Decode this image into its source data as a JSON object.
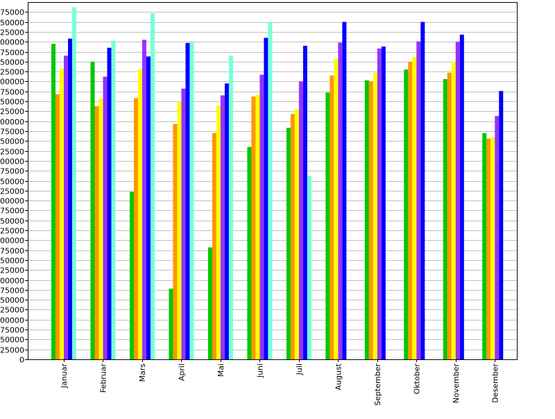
{
  "chart_data": {
    "type": "bar",
    "title": "",
    "xlabel": "",
    "ylabel": "",
    "ylim": [
      0,
      900000
    ],
    "ytick_step": 25000,
    "grid": true,
    "legend": "none",
    "categories": [
      "Januar",
      "Februar",
      "Mars",
      "April",
      "Mai",
      "Juni",
      "Juli",
      "August",
      "September",
      "Oktober",
      "November",
      "Desember"
    ],
    "series": [
      {
        "color": "#00c800",
        "values": [
          795000,
          750000,
          422000,
          178000,
          282000,
          535000,
          583000,
          672000,
          703000,
          730000,
          706000,
          570000
        ]
      },
      {
        "color": "#ff9600",
        "values": [
          668000,
          638000,
          658000,
          593000,
          570000,
          662000,
          618000,
          715000,
          701000,
          750000,
          722000,
          556000
        ]
      },
      {
        "color": "#ffff00",
        "values": [
          733000,
          657000,
          731000,
          649000,
          640000,
          667000,
          631000,
          757000,
          722000,
          762000,
          750000,
          560000
        ]
      },
      {
        "color": "#9632ff",
        "values": [
          765000,
          712000,
          805000,
          682000,
          665000,
          717000,
          700000,
          798000,
          783000,
          801000,
          800000,
          613000
        ]
      },
      {
        "color": "#0000ff",
        "values": [
          808000,
          785000,
          763000,
          797000,
          695000,
          810000,
          790000,
          850000,
          788000,
          850000,
          818000,
          676000
        ]
      },
      {
        "color": "#78ffdc",
        "values": [
          887000,
          803000,
          872000,
          799000,
          765000,
          850000,
          462000,
          null,
          null,
          null,
          null,
          null
        ]
      }
    ]
  }
}
